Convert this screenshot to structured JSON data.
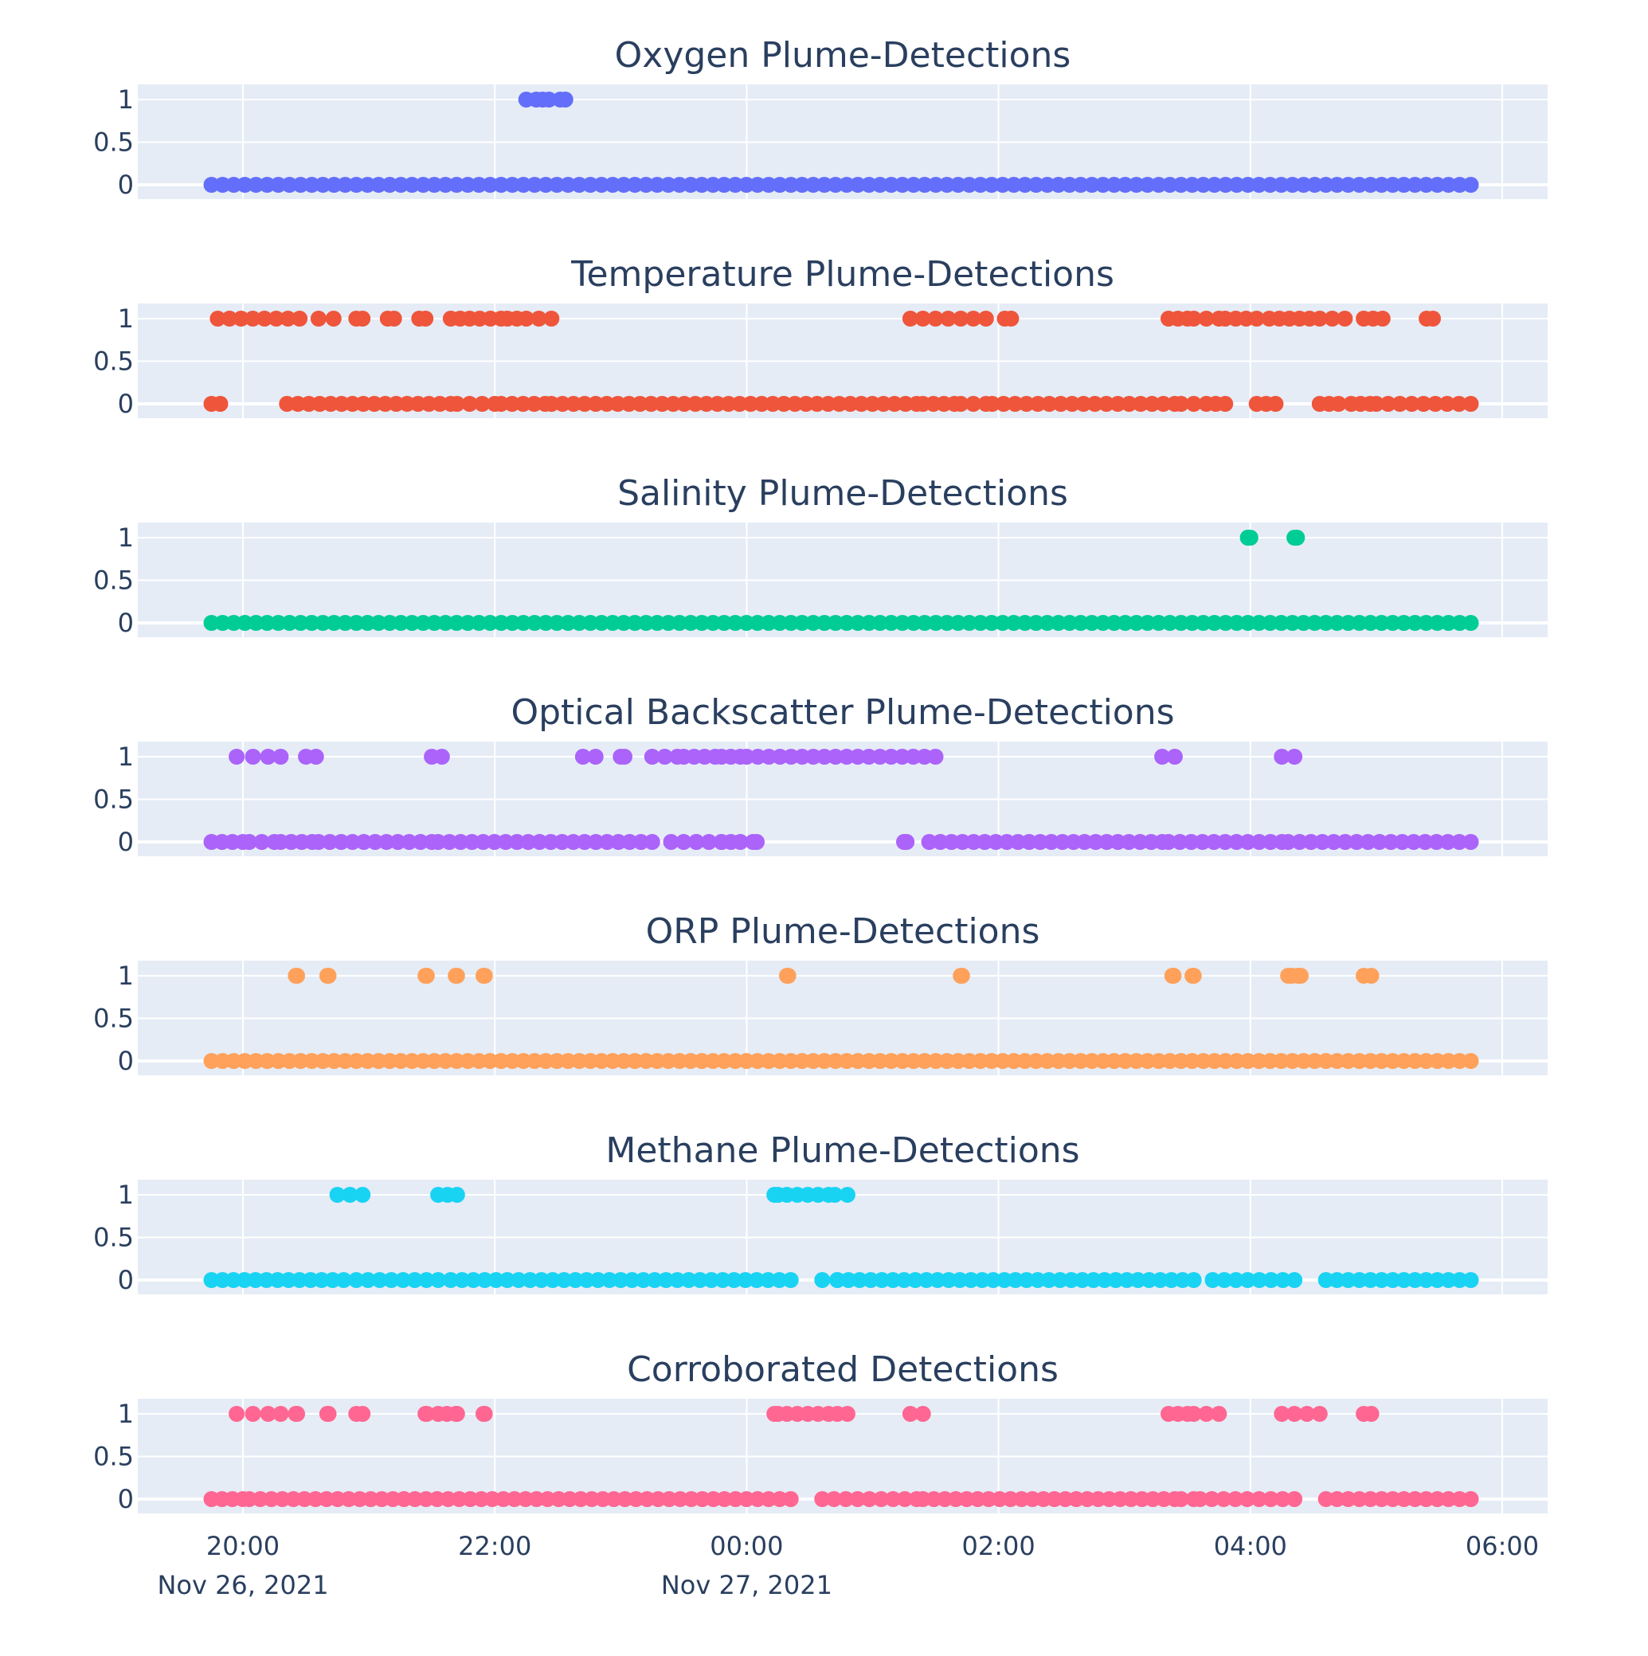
{
  "chart_data": {
    "type": "scatter",
    "layout": "stacked-subplots",
    "shared_x_axis": {
      "tick_labels": [
        {
          "time": "20:00",
          "date": "Nov 26, 2021",
          "hours": 0
        },
        {
          "time": "22:00",
          "date": "",
          "hours": 2
        },
        {
          "time": "00:00",
          "date": "Nov 27, 2021",
          "hours": 4
        },
        {
          "time": "02:00",
          "date": "",
          "hours": 6
        },
        {
          "time": "04:00",
          "date": "",
          "hours": 8
        },
        {
          "time": "06:00",
          "date": "",
          "hours": 10
        }
      ],
      "range_hours_from_2021-11-26T20:00": [
        -0.85,
        10.35
      ]
    },
    "y_ticks": [
      "1",
      "0.5",
      "0"
    ],
    "ylim": [
      -0.13,
      1.13
    ],
    "grid": true,
    "legend": "none",
    "subplots": [
      {
        "title": "Oxygen Plume-Detections",
        "color": "#636efa",
        "ones_segments": [
          [
            2.25,
            2.33
          ],
          [
            2.38,
            2.43
          ],
          [
            2.52,
            2.56
          ]
        ],
        "zeros_segments": [
          [
            -0.25,
            9.75
          ]
        ]
      },
      {
        "title": "Temperature Plume-Detections",
        "color": "#EF553B",
        "ones_segments": [
          [
            -0.2,
            0.45
          ],
          [
            0.6,
            0.72
          ],
          [
            0.9,
            0.95
          ],
          [
            1.15,
            1.2
          ],
          [
            1.4,
            1.45
          ],
          [
            1.65,
            1.8
          ],
          [
            1.88,
            2.05
          ],
          [
            2.1,
            2.25
          ],
          [
            2.35,
            2.45
          ],
          [
            5.3,
            5.4
          ],
          [
            5.5,
            5.7
          ],
          [
            5.8,
            5.9
          ],
          [
            6.05,
            6.1
          ],
          [
            7.35,
            7.5
          ],
          [
            7.55,
            7.75
          ],
          [
            7.8,
            8.05
          ],
          [
            8.15,
            8.55
          ],
          [
            8.65,
            8.75
          ],
          [
            8.9,
            9.05
          ],
          [
            9.4,
            9.45
          ]
        ],
        "zeros_segments": [
          [
            -0.25,
            -0.18
          ],
          [
            0.35,
            1.65
          ],
          [
            1.7,
            2.0
          ],
          [
            2.05,
            2.4
          ],
          [
            2.45,
            5.35
          ],
          [
            5.4,
            5.65
          ],
          [
            5.7,
            5.9
          ],
          [
            5.95,
            7.4
          ],
          [
            7.45,
            7.55
          ],
          [
            7.65,
            7.8
          ],
          [
            8.05,
            8.2
          ],
          [
            8.55,
            8.7
          ],
          [
            8.8,
            8.95
          ],
          [
            9.0,
            9.75
          ]
        ]
      },
      {
        "title": "Salinity  Plume-Detections",
        "color": "#00cc96",
        "ones_segments": [
          [
            7.98,
            8.0
          ],
          [
            8.35,
            8.37
          ]
        ],
        "zeros_segments": [
          [
            -0.25,
            9.75
          ]
        ]
      },
      {
        "title": "Optical Backscatter  Plume-Detections",
        "color": "#ab63fa",
        "ones_segments": [
          [
            -0.05,
            0.08
          ],
          [
            0.2,
            0.3
          ],
          [
            0.5,
            0.58
          ],
          [
            1.5,
            1.58
          ],
          [
            2.7,
            2.8
          ],
          [
            3.0,
            3.03
          ],
          [
            3.25,
            3.45
          ],
          [
            3.5,
            3.75
          ],
          [
            3.8,
            3.95
          ],
          [
            4.0,
            5.5
          ],
          [
            7.3,
            7.4
          ],
          [
            8.25,
            8.35
          ]
        ],
        "zeros_segments": [
          [
            -0.25,
            0.0
          ],
          [
            0.05,
            0.25
          ],
          [
            0.3,
            0.55
          ],
          [
            0.6,
            1.5
          ],
          [
            1.55,
            3.25
          ],
          [
            3.4,
            3.6
          ],
          [
            3.6,
            3.8
          ],
          [
            3.8,
            3.95
          ],
          [
            4.05,
            4.08
          ],
          [
            5.25,
            5.27
          ],
          [
            5.45,
            7.3
          ],
          [
            7.35,
            8.25
          ],
          [
            8.3,
            9.75
          ]
        ]
      },
      {
        "title": "ORP Plume-Detections",
        "color": "#FFA15A",
        "ones_segments": [
          [
            0.42,
            0.43
          ],
          [
            0.67,
            0.68
          ],
          [
            1.45,
            1.46
          ],
          [
            1.69,
            1.7
          ],
          [
            1.91,
            1.92
          ],
          [
            4.32,
            4.33
          ],
          [
            5.7,
            5.71
          ],
          [
            7.38,
            7.39
          ],
          [
            7.54,
            7.55
          ],
          [
            8.3,
            8.33
          ],
          [
            8.38,
            8.4
          ],
          [
            8.9,
            8.96
          ]
        ],
        "zeros_segments": [
          [
            -0.25,
            9.75
          ]
        ]
      },
      {
        "title": "Methane Plume-Detections",
        "color": "#19d3f3",
        "ones_segments": [
          [
            0.75,
            0.95
          ],
          [
            1.55,
            1.7
          ],
          [
            4.22,
            4.25
          ],
          [
            4.32,
            4.65
          ],
          [
            4.7,
            4.8
          ]
        ],
        "zeros_segments": [
          [
            -0.25,
            0.8
          ],
          [
            0.9,
            1.55
          ],
          [
            1.65,
            4.35
          ],
          [
            4.6,
            4.72
          ],
          [
            4.72,
            7.55
          ],
          [
            7.7,
            8.35
          ],
          [
            8.6,
            9.75
          ]
        ]
      },
      {
        "title": "Corroborated Detections",
        "color": "#FF6692",
        "ones_segments": [
          [
            -0.05,
            0.08
          ],
          [
            0.2,
            0.3
          ],
          [
            0.42,
            0.43
          ],
          [
            0.67,
            0.68
          ],
          [
            0.9,
            0.95
          ],
          [
            1.45,
            1.46
          ],
          [
            1.55,
            1.62
          ],
          [
            1.69,
            1.7
          ],
          [
            1.91,
            1.92
          ],
          [
            4.22,
            4.25
          ],
          [
            4.32,
            4.65
          ],
          [
            4.72,
            4.8
          ],
          [
            5.3,
            5.4
          ],
          [
            7.35,
            7.5
          ],
          [
            7.55,
            7.75
          ],
          [
            8.25,
            8.55
          ],
          [
            8.9,
            8.96
          ]
        ],
        "zeros_segments": [
          [
            -0.25,
            0.0
          ],
          [
            0.05,
            4.35
          ],
          [
            4.6,
            5.35
          ],
          [
            5.4,
            7.4
          ],
          [
            7.45,
            7.55
          ],
          [
            7.6,
            8.35
          ],
          [
            8.6,
            9.75
          ]
        ]
      }
    ]
  }
}
